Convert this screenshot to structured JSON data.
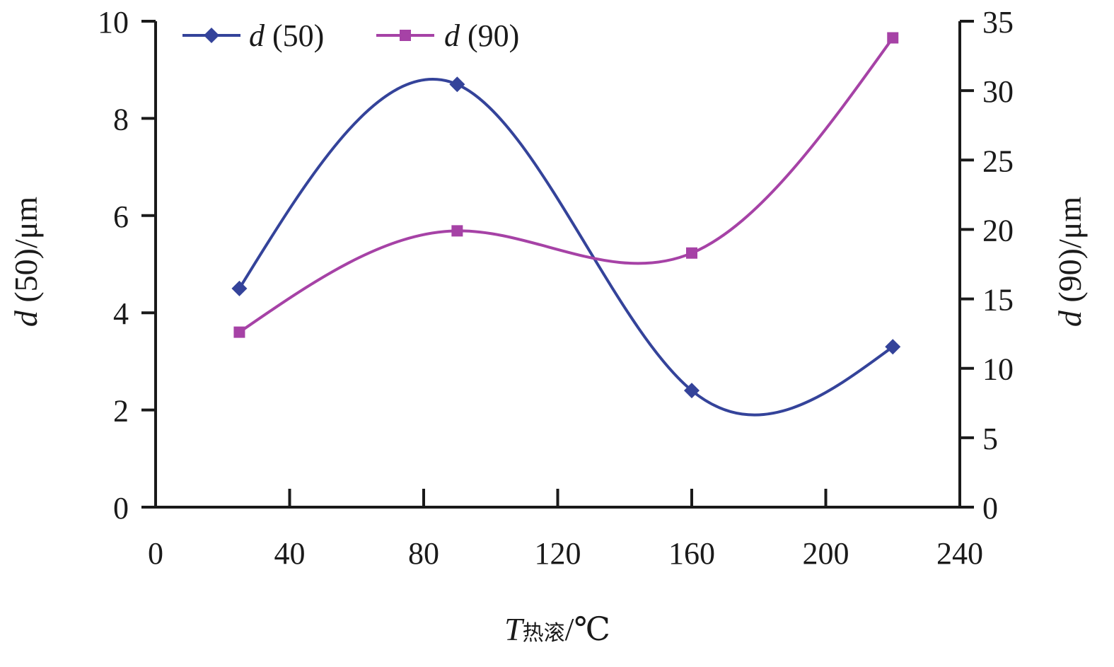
{
  "chart_data": {
    "type": "line",
    "x": [
      25,
      90,
      160,
      220
    ],
    "series": [
      {
        "name": "d (50)",
        "name_italic": "d",
        "name_rest": " (50)",
        "values": [
          4.5,
          8.7,
          2.4,
          3.3
        ],
        "axis": "left",
        "color": "#34439a",
        "marker": "diamond"
      },
      {
        "name": "d (90)",
        "name_italic": "d",
        "name_rest": " (90)",
        "values": [
          12.6,
          19.9,
          18.3,
          33.8
        ],
        "axis": "right",
        "color": "#a642a6",
        "marker": "square"
      }
    ],
    "xlabel_italic": "T",
    "xlabel_sub": "热滚",
    "xlabel_unit": "/℃",
    "ylabel_left_italic": "d",
    "ylabel_left_rest": " (50)/μm",
    "ylabel_right_italic": "d",
    "ylabel_right_rest": " (90)/μm",
    "xlim": [
      0,
      240
    ],
    "ylim_left": [
      0,
      10
    ],
    "ylim_right": [
      0,
      35
    ],
    "x_ticks": [
      "0",
      "40",
      "80",
      "120",
      "160",
      "200",
      "240"
    ],
    "y_left_ticks": [
      "0",
      "2",
      "4",
      "6",
      "8",
      "10"
    ],
    "y_right_ticks": [
      "0",
      "5",
      "10",
      "15",
      "20",
      "25",
      "30",
      "35"
    ],
    "grid": false,
    "legend_position": "top-left"
  }
}
